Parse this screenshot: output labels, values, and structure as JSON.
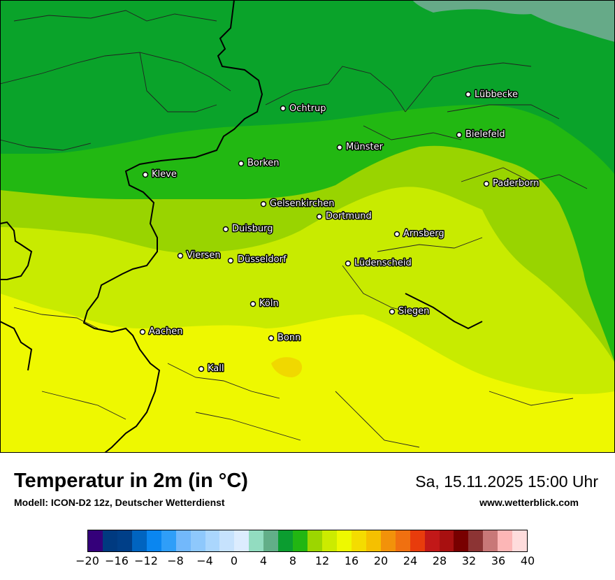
{
  "map": {
    "cities": [
      {
        "name": "Lübbecke"
      },
      {
        "name": "Ochtrup"
      },
      {
        "name": "Bielefeld"
      },
      {
        "name": "Münster"
      },
      {
        "name": "Borken"
      },
      {
        "name": "Kleve"
      },
      {
        "name": "Paderborn"
      },
      {
        "name": "Gelsenkirchen"
      },
      {
        "name": "Dortmund"
      },
      {
        "name": "Duisburg"
      },
      {
        "name": "Arnsberg"
      },
      {
        "name": "Viersen"
      },
      {
        "name": "Düsseldorf"
      },
      {
        "name": "Lüdenscheid"
      },
      {
        "name": "Köln"
      },
      {
        "name": "Siegen"
      },
      {
        "name": "Aachen"
      },
      {
        "name": "Bonn"
      },
      {
        "name": "Kall"
      }
    ],
    "colors": {
      "band_4_6": "#66aa88",
      "band_6_8": "#0aa32a",
      "band_8_10": "#22b812",
      "band_10_12": "#99d400",
      "band_12_14": "#c8eb00",
      "band_14_16": "#eef800",
      "band_16_18": "#f0d800"
    }
  },
  "footer": {
    "title": "Temperatur in 2m (in °C)",
    "model": "Modell: ICON-D2 12z, Deutscher Wetterdienst",
    "datetime": "Sa, 15.11.2025 15:00 Uhr",
    "website": "www.wetterblick.com"
  },
  "legend": {
    "colors": [
      "#34007a",
      "#003a80",
      "#003f88",
      "#0064c0",
      "#0a86f0",
      "#2f9ef8",
      "#72b8fb",
      "#8ec8fc",
      "#aad6fd",
      "#c6e2fd",
      "#dcecfe",
      "#92dcc0",
      "#62ae88",
      "#0b9d30",
      "#22b612",
      "#9cd600",
      "#cceb00",
      "#eef900",
      "#f4dc00",
      "#f5c000",
      "#f2920a",
      "#f07010",
      "#e83c0c",
      "#c21818",
      "#a81010",
      "#780000",
      "#8c3434",
      "#c87878",
      "#fcb6b6",
      "#fedcdc"
    ],
    "ticks": [
      "−20",
      "−16",
      "−12",
      "−8",
      "−4",
      "0",
      "4",
      "8",
      "12",
      "16",
      "20",
      "24",
      "28",
      "32",
      "36",
      "40"
    ]
  }
}
